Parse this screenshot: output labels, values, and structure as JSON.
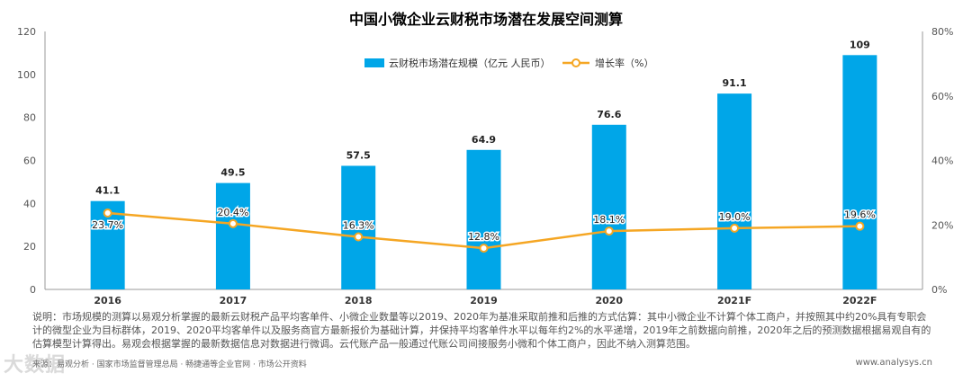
{
  "colors": {
    "bar": "#00a6e8",
    "line": "#f5a623",
    "axis": "#999999",
    "title": "#222222"
  },
  "chart_data": {
    "type": "bar",
    "title": "中国小微企业云财税市场潜在发展空间测算",
    "categories": [
      "2016",
      "2017",
      "2018",
      "2019",
      "2020",
      "2021F",
      "2022F"
    ],
    "series": [
      {
        "name": "云财税市场潜在规模（亿元 人民币）",
        "type": "bar",
        "axis": "left",
        "values": [
          41.1,
          49.5,
          57.5,
          64.9,
          76.6,
          91.1,
          109
        ],
        "labels": [
          "41.1",
          "49.5",
          "57.5",
          "64.9",
          "76.6",
          "91.1",
          "109"
        ]
      },
      {
        "name": "增长率（%）",
        "type": "line",
        "axis": "right",
        "values": [
          23.7,
          20.4,
          16.3,
          12.8,
          18.1,
          19.0,
          19.6
        ],
        "labels": [
          "23.7%",
          "20.4%",
          "16.3%",
          "12.8%",
          "18.1%",
          "19.0%",
          "19.6%"
        ]
      }
    ],
    "y_left": {
      "min": 0,
      "max": 120,
      "ticks": [
        0,
        20,
        40,
        60,
        80,
        100,
        120
      ]
    },
    "y_right": {
      "min": 0,
      "max": 80,
      "ticks": [
        0,
        20,
        40,
        60,
        80
      ],
      "tick_labels": [
        "0%",
        "20%",
        "40%",
        "60%",
        "80%"
      ]
    },
    "legend_position": "top-center"
  },
  "footer": {
    "note": "说明：市场规模的测算以易观分析掌握的最新云财税产品平均客单件、小微企业数量等以2019、2020年为基准采取前推和后推的方式估算：其中小微企业不计算个体工商户，并按照其中约20%具有专职会计的微型企业为目标群体，2019、2020平均客单件以及服务商官方最新报价为基础计算，并保持平均客单件水平以每年约2%的水平递增，2019年之前数据向前推，2020年之后的预测数据根据易观自有的估算模型计算得出。易观会根据掌握的最新数据信息对数据进行微调。云代账产品一般通过代账公司间接服务小微和个体工商户，因此不纳入测算范围。",
    "source": "来源：易观分析 · 国家市场监督管理总局 · 畅捷通等企业官网 · 市场公开资料",
    "site": "www.analysys.cn",
    "watermark": "大数据"
  }
}
